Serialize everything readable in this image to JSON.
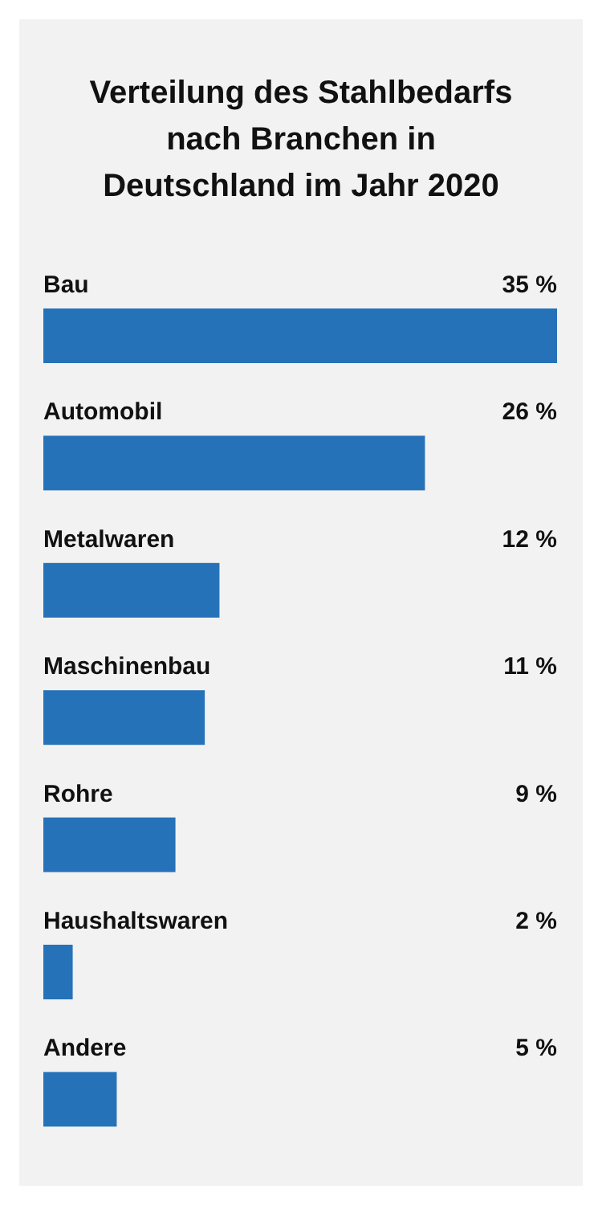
{
  "chart_data": {
    "type": "bar",
    "orientation": "horizontal",
    "title": "Verteilung des Stahlbedarfs\nnach Branchen in\nDeutschland im Jahr 2020",
    "categories": [
      "Bau",
      "Automobil",
      "Metalwaren",
      "Maschinenbau",
      "Rohre",
      "Haushaltswaren",
      "Andere"
    ],
    "values": [
      35,
      26,
      12,
      11,
      9,
      2,
      5
    ],
    "value_labels": [
      "35 %",
      "26 %",
      "12 %",
      "11 %",
      "9 %",
      "2 %",
      "5 %"
    ],
    "color": "#2672b9"
  }
}
